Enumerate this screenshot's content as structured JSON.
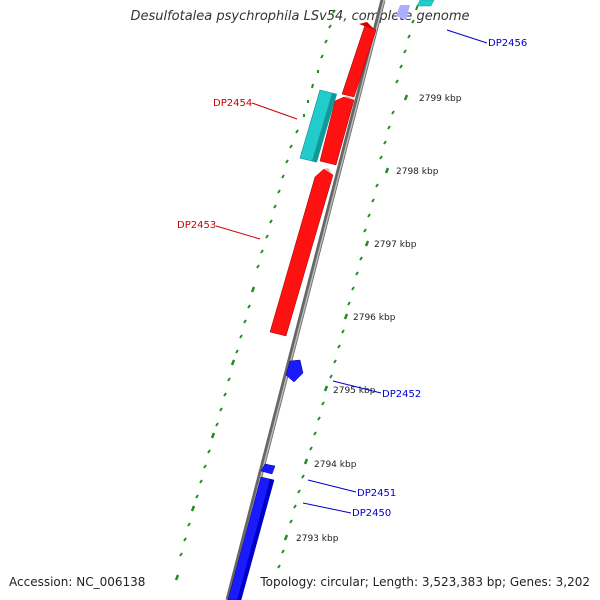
{
  "title": "Desulfotalea psychrophila LSv54, complete genome",
  "accession": "Accession: NC_006138",
  "topology": "Topology: circular; Length: 3,523,383 bp; Genes: 3,202",
  "colors": {
    "forward_cds": "#ff0000",
    "reverse_cds": "#0000ff",
    "rna": "#22cccc",
    "backbone": "#888888",
    "ticks": "#228B22"
  },
  "tick_labels": [
    "2799 kbp",
    "2798 kbp",
    "2797 kbp",
    "2796 kbp",
    "2795 kbp",
    "2794 kbp",
    "2793 kbp"
  ],
  "gene_labels": {
    "DP2456": "DP2456",
    "DP2454": "DP2454",
    "DP2453": "DP2453",
    "DP2452": "DP2452",
    "DP2451": "DP2451",
    "DP2450": "DP2450"
  }
}
